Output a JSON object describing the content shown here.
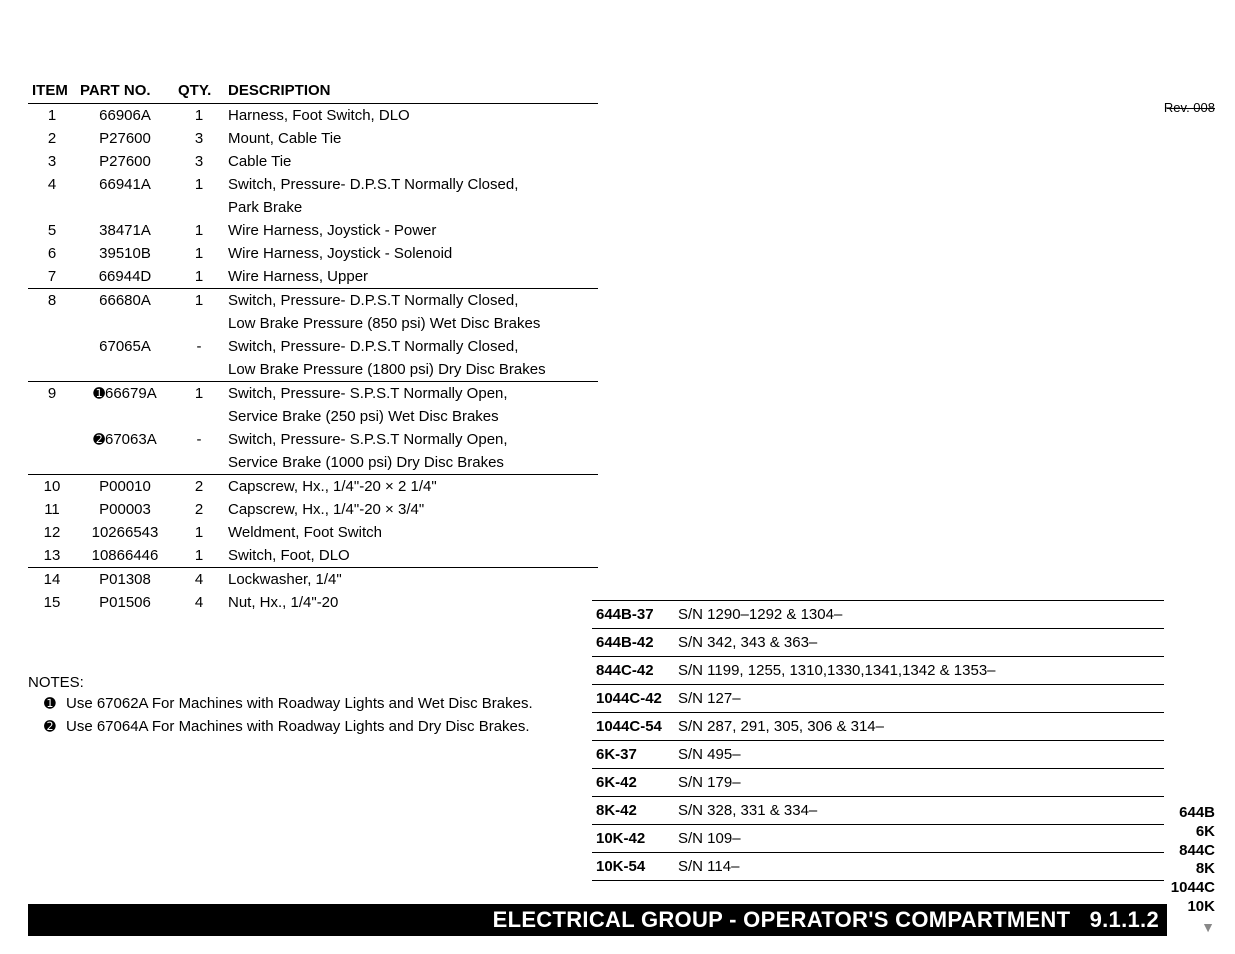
{
  "headers": {
    "item": "ITEM",
    "partno": "PART NO.",
    "qty": "QTY.",
    "description": "DESCRIPTION"
  },
  "revision": "Rev. 008",
  "rows": [
    {
      "item": "1",
      "partno": "66906A",
      "qty": "1",
      "desc": "Harness, Foot Switch, DLO",
      "border": false
    },
    {
      "item": "2",
      "partno": "P27600",
      "qty": "3",
      "desc": "Mount, Cable Tie",
      "border": false
    },
    {
      "item": "3",
      "partno": "P27600",
      "qty": "3",
      "desc": "Cable Tie",
      "border": false
    },
    {
      "item": "4",
      "partno": "66941A",
      "qty": "1",
      "desc": "Switch, Pressure- D.P.S.T Normally Closed,",
      "border": false
    },
    {
      "item": "",
      "partno": "",
      "qty": "",
      "desc": "Park Brake",
      "border": false
    },
    {
      "item": "5",
      "partno": "38471A",
      "qty": "1",
      "desc": "Wire Harness, Joystick - Power",
      "border": false
    },
    {
      "item": "6",
      "partno": "39510B",
      "qty": "1",
      "desc": "Wire Harness, Joystick - Solenoid",
      "border": false
    },
    {
      "item": "7",
      "partno": "66944D",
      "qty": "1",
      "desc": "Wire Harness, Upper",
      "border": false
    },
    {
      "item": "8",
      "partno": "66680A",
      "qty": "1",
      "desc": "Switch, Pressure- D.P.S.T Normally Closed,",
      "border": true
    },
    {
      "item": "",
      "partno": "",
      "qty": "",
      "desc": "Low Brake Pressure (850 psi) Wet Disc Brakes",
      "border": false
    },
    {
      "item": "",
      "partno": "67065A",
      "qty": "-",
      "desc": "Switch, Pressure- D.P.S.T Normally Closed,",
      "border": false
    },
    {
      "item": "",
      "partno": "",
      "qty": "",
      "desc": "Low Brake Pressure (1800 psi) Dry Disc Brakes",
      "border": false
    },
    {
      "item": "9",
      "partno_prefix": "➊",
      "partno": "66679A",
      "qty": "1",
      "desc": "Switch, Pressure- S.P.S.T Normally Open,",
      "border": true
    },
    {
      "item": "",
      "partno": "",
      "qty": "",
      "desc": "Service Brake (250 psi) Wet Disc Brakes",
      "border": false
    },
    {
      "item": "",
      "partno_prefix": "➋",
      "partno": "67063A",
      "qty": "-",
      "desc": "Switch, Pressure- S.P.S.T Normally Open,",
      "border": false
    },
    {
      "item": "",
      "partno": "",
      "qty": "",
      "desc": "Service Brake (1000 psi) Dry Disc Brakes",
      "border": false
    },
    {
      "item": "10",
      "partno": "P00010",
      "qty": "2",
      "desc": "Capscrew, Hx., 1/4\"-20 × 2 1/4\"",
      "border": true
    },
    {
      "item": "11",
      "partno": "P00003",
      "qty": "2",
      "desc": "Capscrew, Hx., 1/4\"-20 × 3/4\"",
      "border": false
    },
    {
      "item": "12",
      "partno": "10266543",
      "qty": "1",
      "desc": "Weldment, Foot Switch",
      "border": false
    },
    {
      "item": "13",
      "partno": "10866446",
      "qty": "1",
      "desc": "Switch, Foot, DLO",
      "border": false
    },
    {
      "item": "14",
      "partno": "P01308",
      "qty": "4",
      "desc": "Lockwasher, 1/4\"",
      "border": true
    },
    {
      "item": "15",
      "partno": "P01506",
      "qty": "4",
      "desc": "Nut, Hx., 1/4\"-20",
      "border": false
    }
  ],
  "notes": {
    "heading": "NOTES:",
    "items": [
      {
        "sym": "➊",
        "text": "Use 67062A For Machines with Roadway Lights and Wet Disc Brakes."
      },
      {
        "sym": "➋",
        "text": "Use 67064A For Machines with Roadway Lights and Dry Disc Brakes."
      }
    ]
  },
  "serial_numbers": [
    {
      "model": "644B-37",
      "text": "S/N 1290–1292 & 1304–"
    },
    {
      "model": "644B-42",
      "text": "S/N 342, 343 & 363–"
    },
    {
      "model": "844C-42",
      "text": "S/N 1199, 1255, 1310,1330,1341,1342 & 1353–"
    },
    {
      "model": "1044C-42",
      "text": "S/N 127–"
    },
    {
      "model": "1044C-54",
      "text": "S/N 287, 291, 305, 306 & 314–"
    },
    {
      "model": "6K-37",
      "text": "S/N 495–"
    },
    {
      "model": "6K-42",
      "text": "S/N 179–"
    },
    {
      "model": "8K-42",
      "text": "S/N 328, 331 & 334–"
    },
    {
      "model": "10K-42",
      "text": "S/N 109–"
    },
    {
      "model": "10K-54",
      "text": "S/N 114–"
    }
  ],
  "footer": {
    "title": "ELECTRICAL GROUP - OPERATOR'S COMPARTMENT",
    "section": "9.1.1.2"
  },
  "right_models": [
    "644B",
    "6K",
    "844C",
    "8K",
    "1044C",
    "10K"
  ],
  "arrow": "▼"
}
